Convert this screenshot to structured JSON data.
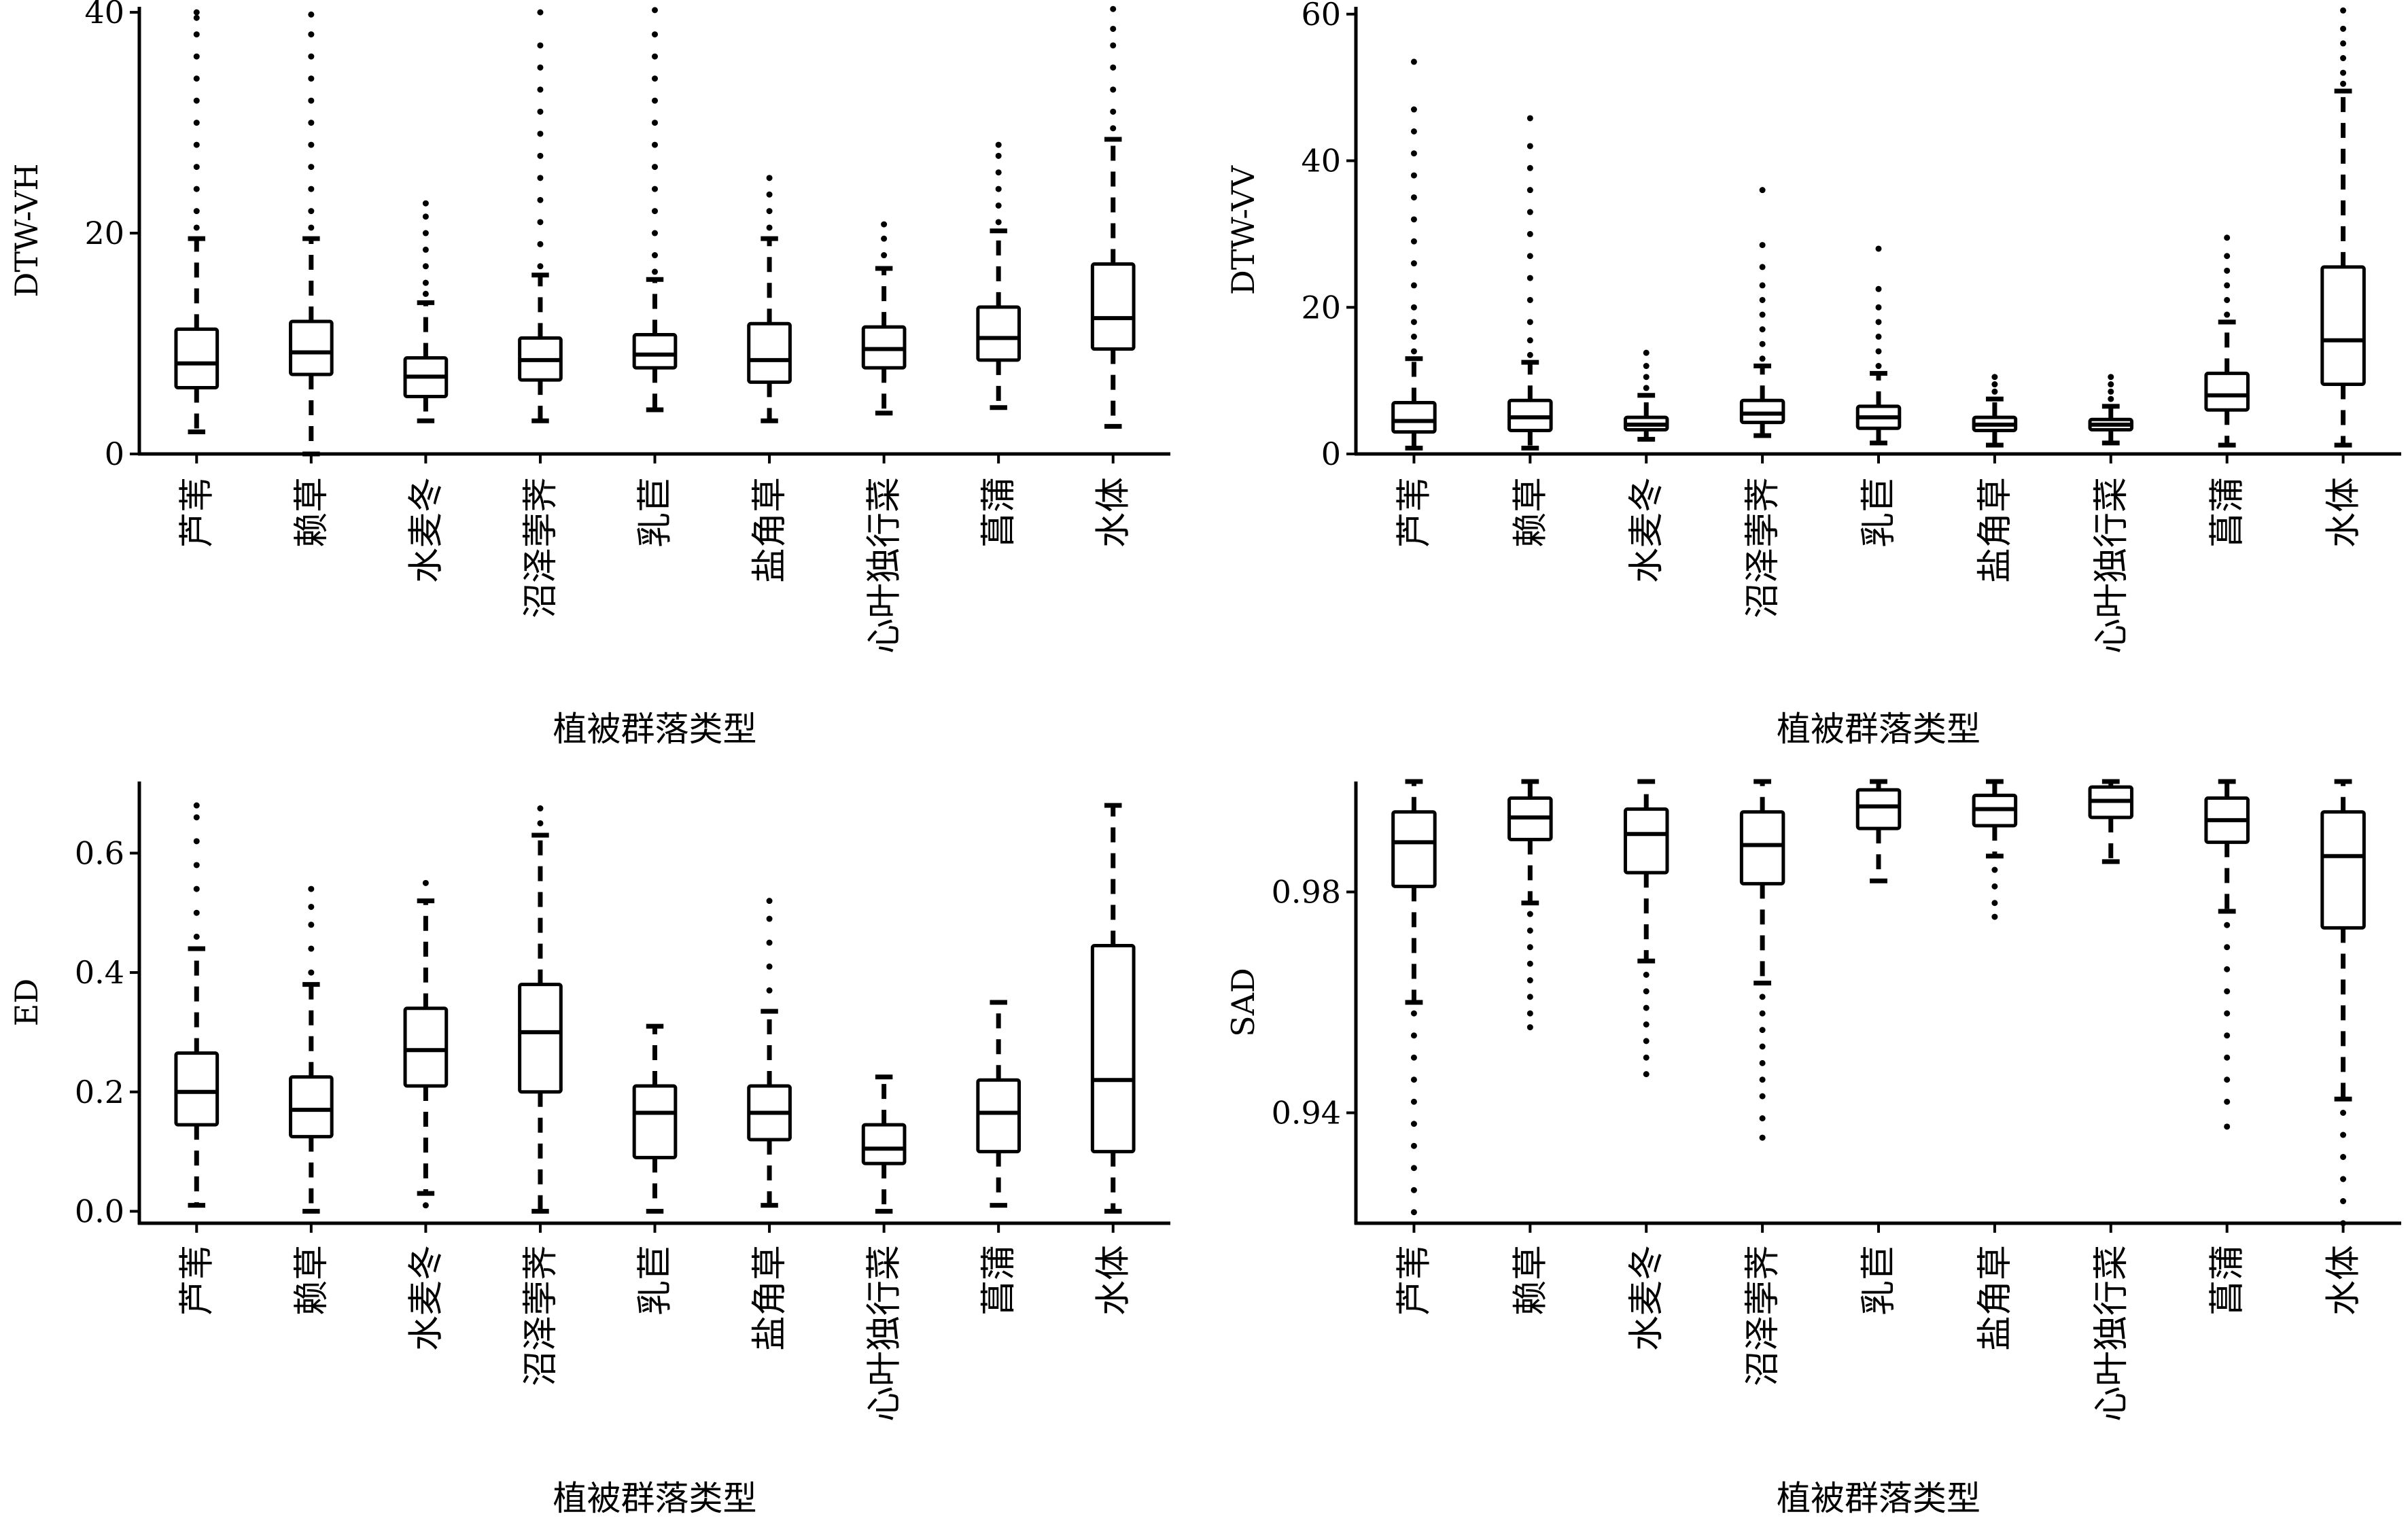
{
  "chart_data": [
    {
      "type": "box",
      "title": "",
      "xlabel": "植被群落类型",
      "ylabel": "DTW-VH",
      "categories": [
        "芦苇",
        "赖草",
        "水麦冬",
        "沼泽荸荠",
        "乳苣",
        "盐角草",
        "心叶独行菜",
        "菖蒲",
        "水体"
      ],
      "ylim": [
        0,
        40.5
      ],
      "yticks": [
        0,
        20,
        40
      ],
      "ytick_labels": [
        "0",
        "20",
        "40"
      ],
      "boxes": [
        {
          "whisker_low": 2,
          "q1": 6,
          "median": 8.2,
          "q3": 11.3,
          "whisker_high": 19.5,
          "outliers": [
            20.5,
            22,
            24,
            26,
            28,
            30,
            32,
            34,
            36,
            38,
            39.5,
            40
          ]
        },
        {
          "whisker_low": 0,
          "q1": 7.2,
          "median": 9.2,
          "q3": 12,
          "whisker_high": 19.5,
          "outliers": [
            20.5,
            22,
            24,
            26,
            28,
            30,
            32,
            34,
            36,
            38,
            39.8
          ]
        },
        {
          "whisker_low": 3,
          "q1": 5.2,
          "median": 7,
          "q3": 8.7,
          "whisker_high": 13.7,
          "outliers": [
            14.5,
            15.5,
            17,
            18.5,
            20,
            21.5,
            22.7
          ]
        },
        {
          "whisker_low": 3,
          "q1": 6.7,
          "median": 8.5,
          "q3": 10.5,
          "whisker_high": 16.2,
          "outliers": [
            17,
            19,
            21,
            23,
            25,
            27,
            29,
            31,
            33,
            35,
            37,
            40
          ]
        },
        {
          "whisker_low": 4,
          "q1": 7.8,
          "median": 9,
          "q3": 10.8,
          "whisker_high": 15.8,
          "outliers": [
            16.5,
            18,
            20,
            22,
            24,
            26,
            28,
            30,
            32,
            34,
            36,
            38,
            40.2
          ]
        },
        {
          "whisker_low": 3,
          "q1": 6.5,
          "median": 8.5,
          "q3": 11.8,
          "whisker_high": 19.5,
          "outliers": [
            20.5,
            22,
            23.5,
            25
          ]
        },
        {
          "whisker_low": 3.7,
          "q1": 7.8,
          "median": 9.5,
          "q3": 11.5,
          "whisker_high": 16.8,
          "outliers": [
            18,
            19.5,
            20.8
          ]
        },
        {
          "whisker_low": 4.2,
          "q1": 8.5,
          "median": 10.5,
          "q3": 13.3,
          "whisker_high": 20.2,
          "outliers": [
            21,
            22.5,
            24,
            25.5,
            27,
            28
          ]
        },
        {
          "whisker_low": 2.5,
          "q1": 9.5,
          "median": 12.3,
          "q3": 17.2,
          "whisker_high": 28.5,
          "outliers": [
            29.5,
            31,
            33,
            35,
            37,
            38.5,
            40.3
          ]
        }
      ]
    },
    {
      "type": "box",
      "title": "",
      "xlabel": "植被群落类型",
      "ylabel": "DTW-VV",
      "categories": [
        "芦苇",
        "赖草",
        "水麦冬",
        "沼泽荸荠",
        "乳苣",
        "盐角草",
        "心叶独行菜",
        "菖蒲",
        "水体"
      ],
      "ylim": [
        0,
        61
      ],
      "yticks": [
        0,
        20,
        40,
        60
      ],
      "ytick_labels": [
        "0",
        "20",
        "40",
        "60"
      ],
      "boxes": [
        {
          "whisker_low": 0.8,
          "q1": 3,
          "median": 4.5,
          "q3": 7,
          "whisker_high": 13,
          "outliers": [
            14,
            16,
            18,
            20,
            23,
            26,
            29,
            32,
            35,
            38,
            41,
            44,
            47,
            53.5
          ]
        },
        {
          "whisker_low": 0.8,
          "q1": 3.2,
          "median": 5,
          "q3": 7.3,
          "whisker_high": 12.5,
          "outliers": [
            13.5,
            15.5,
            18,
            21,
            24,
            27,
            30,
            33,
            36,
            39,
            42,
            45.8
          ]
        },
        {
          "whisker_low": 2,
          "q1": 3.3,
          "median": 4,
          "q3": 5,
          "whisker_high": 8,
          "outliers": [
            9,
            10.5,
            12,
            13.8
          ]
        },
        {
          "whisker_low": 2.5,
          "q1": 4.3,
          "median": 5.5,
          "q3": 7.3,
          "whisker_high": 12,
          "outliers": [
            13,
            15,
            17,
            19,
            21,
            23,
            25.5,
            28.5,
            36
          ]
        },
        {
          "whisker_low": 1.5,
          "q1": 3.5,
          "median": 5,
          "q3": 6.5,
          "whisker_high": 11,
          "outliers": [
            12,
            14,
            16,
            18,
            20,
            22.5,
            28
          ]
        },
        {
          "whisker_low": 1.2,
          "q1": 3.2,
          "median": 4,
          "q3": 5,
          "whisker_high": 7.5,
          "outliers": [
            8.5,
            9.5,
            10.5
          ]
        },
        {
          "whisker_low": 1.5,
          "q1": 3.3,
          "median": 4,
          "q3": 4.7,
          "whisker_high": 6.5,
          "outliers": [
            7.5,
            8.5,
            9.5,
            10.5
          ]
        },
        {
          "whisker_low": 1.2,
          "q1": 6,
          "median": 8,
          "q3": 11,
          "whisker_high": 18,
          "outliers": [
            19,
            21,
            23,
            25,
            27,
            29.5
          ]
        },
        {
          "whisker_low": 1.2,
          "q1": 9.5,
          "median": 15.5,
          "q3": 25.5,
          "whisker_high": 49.5,
          "outliers": [
            50.5,
            52,
            54,
            56,
            58,
            60.5
          ]
        }
      ]
    },
    {
      "type": "box",
      "title": "",
      "xlabel": "植被群落类型",
      "ylabel": "ED",
      "categories": [
        "芦苇",
        "赖草",
        "水麦冬",
        "沼泽荸荠",
        "乳苣",
        "盐角草",
        "心叶独行菜",
        "菖蒲",
        "水体"
      ],
      "ylim": [
        -0.02,
        0.72
      ],
      "yticks": [
        0,
        0.2,
        0.4,
        0.6
      ],
      "ytick_labels": [
        "0.0",
        "0.2",
        "0.4",
        "0.6"
      ],
      "boxes": [
        {
          "whisker_low": 0.01,
          "q1": 0.145,
          "median": 0.2,
          "q3": 0.265,
          "whisker_high": 0.44,
          "outliers": [
            0.46,
            0.5,
            0.54,
            0.58,
            0.62,
            0.66,
            0.68
          ]
        },
        {
          "whisker_low": 0.0,
          "q1": 0.125,
          "median": 0.17,
          "q3": 0.225,
          "whisker_high": 0.38,
          "outliers": [
            0.4,
            0.44,
            0.48,
            0.51,
            0.54
          ]
        },
        {
          "whisker_low": 0.03,
          "q1": 0.21,
          "median": 0.27,
          "q3": 0.34,
          "whisker_high": 0.52,
          "outliers": [
            0.01,
            0.55
          ]
        },
        {
          "whisker_low": 0.0,
          "q1": 0.2,
          "median": 0.3,
          "q3": 0.38,
          "whisker_high": 0.63,
          "outliers": [
            0.65,
            0.675
          ]
        },
        {
          "whisker_low": 0.0,
          "q1": 0.09,
          "median": 0.165,
          "q3": 0.21,
          "whisker_high": 0.31,
          "outliers": []
        },
        {
          "whisker_low": 0.01,
          "q1": 0.12,
          "median": 0.165,
          "q3": 0.21,
          "whisker_high": 0.335,
          "outliers": [
            0.37,
            0.41,
            0.45,
            0.49,
            0.52
          ]
        },
        {
          "whisker_low": 0.0,
          "q1": 0.08,
          "median": 0.105,
          "q3": 0.145,
          "whisker_high": 0.225,
          "outliers": []
        },
        {
          "whisker_low": 0.01,
          "q1": 0.1,
          "median": 0.165,
          "q3": 0.22,
          "whisker_high": 0.35,
          "outliers": []
        },
        {
          "whisker_low": 0.0,
          "q1": 0.1,
          "median": 0.22,
          "q3": 0.445,
          "whisker_high": 0.68,
          "outliers": []
        }
      ]
    },
    {
      "type": "box",
      "title": "",
      "xlabel": "植被群落类型",
      "ylabel": "SAD",
      "categories": [
        "芦苇",
        "赖草",
        "水麦冬",
        "沼泽荸荠",
        "乳苣",
        "盐角草",
        "心叶独行菜",
        "菖蒲",
        "水体"
      ],
      "ylim": [
        0.92,
        1.0
      ],
      "yticks": [
        0.94,
        0.98
      ],
      "ytick_labels": [
        "0.94",
        "0.98"
      ],
      "boxes": [
        {
          "whisker_low": 0.96,
          "q1": 0.981,
          "median": 0.989,
          "q3": 0.9945,
          "whisker_high": 1.0,
          "outliers": [
            0.958,
            0.954,
            0.95,
            0.946,
            0.942,
            0.938,
            0.934,
            0.93,
            0.926,
            0.922
          ]
        },
        {
          "whisker_low": 0.978,
          "q1": 0.9895,
          "median": 0.9935,
          "q3": 0.997,
          "whisker_high": 1.0,
          "outliers": [
            0.976,
            0.973,
            0.97,
            0.967,
            0.964,
            0.961,
            0.958,
            0.9555
          ]
        },
        {
          "whisker_low": 0.9675,
          "q1": 0.9835,
          "median": 0.9905,
          "q3": 0.995,
          "whisker_high": 1.0,
          "outliers": [
            0.965,
            0.962,
            0.959,
            0.956,
            0.953,
            0.95,
            0.947
          ]
        },
        {
          "whisker_low": 0.9635,
          "q1": 0.9815,
          "median": 0.9885,
          "q3": 0.9945,
          "whisker_high": 1.0,
          "outliers": [
            0.961,
            0.958,
            0.955,
            0.952,
            0.949,
            0.946,
            0.943,
            0.939,
            0.9355
          ]
        },
        {
          "whisker_low": 0.982,
          "q1": 0.9915,
          "median": 0.9955,
          "q3": 0.9985,
          "whisker_high": 1.0,
          "outliers": []
        },
        {
          "whisker_low": 0.9865,
          "q1": 0.992,
          "median": 0.995,
          "q3": 0.9975,
          "whisker_high": 1.0,
          "outliers": [
            0.984,
            0.981,
            0.978,
            0.9755
          ]
        },
        {
          "whisker_low": 0.9855,
          "q1": 0.9935,
          "median": 0.9965,
          "q3": 0.999,
          "whisker_high": 1.0,
          "outliers": []
        },
        {
          "whisker_low": 0.9765,
          "q1": 0.989,
          "median": 0.993,
          "q3": 0.997,
          "whisker_high": 1.0,
          "outliers": [
            0.974,
            0.97,
            0.966,
            0.962,
            0.958,
            0.954,
            0.95,
            0.946,
            0.942,
            0.9375
          ]
        },
        {
          "whisker_low": 0.9425,
          "q1": 0.9735,
          "median": 0.9865,
          "q3": 0.9945,
          "whisker_high": 1.0,
          "outliers": [
            0.94,
            0.936,
            0.932,
            0.928,
            0.924,
            0.92
          ]
        }
      ]
    }
  ]
}
